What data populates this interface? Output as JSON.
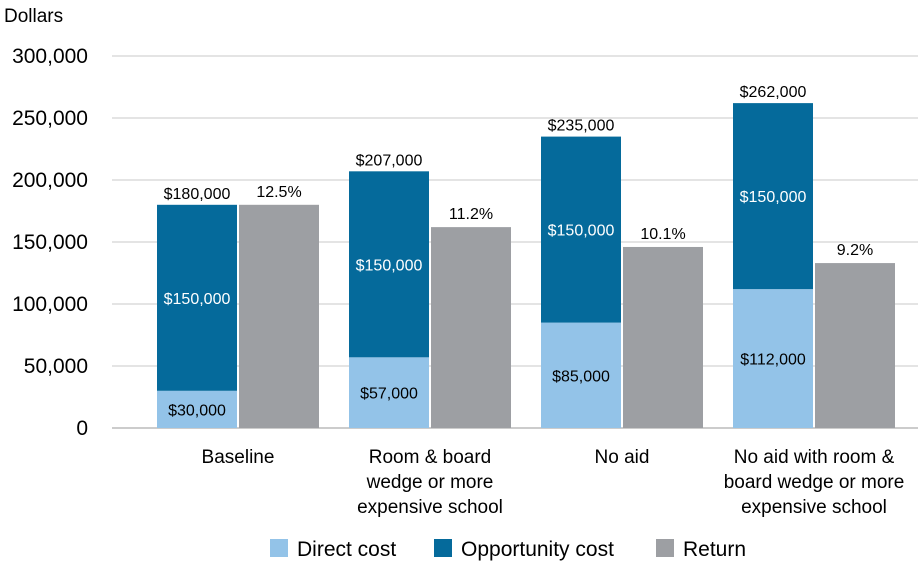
{
  "chart_data": {
    "type": "bar",
    "ylabel": "Dollars",
    "ylim": [
      0,
      300000
    ],
    "yticks": [
      0,
      50000,
      100000,
      150000,
      200000,
      250000,
      300000
    ],
    "ytick_labels": [
      "0",
      "50,000",
      "100,000",
      "150,000",
      "200,000",
      "250,000",
      "300,000"
    ],
    "grid": true,
    "legend_position": "bottom",
    "categories": [
      [
        "Baseline"
      ],
      [
        "Room & board",
        "wedge or more",
        "expensive school"
      ],
      [
        "No aid"
      ],
      [
        "No aid with room &",
        "board wedge or more",
        "expensive school"
      ]
    ],
    "series": [
      {
        "name": "Direct cost",
        "stack": "cost",
        "color": "#93c3e8",
        "values": [
          30000,
          57000,
          85000,
          112000
        ],
        "labels": [
          "$30,000",
          "$57,000",
          "$85,000",
          "$112,000"
        ],
        "label_color": "#000000"
      },
      {
        "name": "Opportunity cost",
        "stack": "cost",
        "color": "#056a9b",
        "values": [
          150000,
          150000,
          150000,
          150000
        ],
        "labels": [
          "$150,000",
          "$150,000",
          "$150,000",
          "$150,000"
        ],
        "label_color": "#ffffff"
      },
      {
        "name": "Return",
        "stack": "return",
        "color": "#9d9fa3",
        "values": [
          180000,
          162000,
          146000,
          133000
        ],
        "labels": [
          "12.5%",
          "11.2%",
          "10.1%",
          "9.2%"
        ],
        "label_color": "#000000"
      }
    ],
    "totals": [
      "$180,000",
      "$207,000",
      "$235,000",
      "$262,000"
    ]
  }
}
